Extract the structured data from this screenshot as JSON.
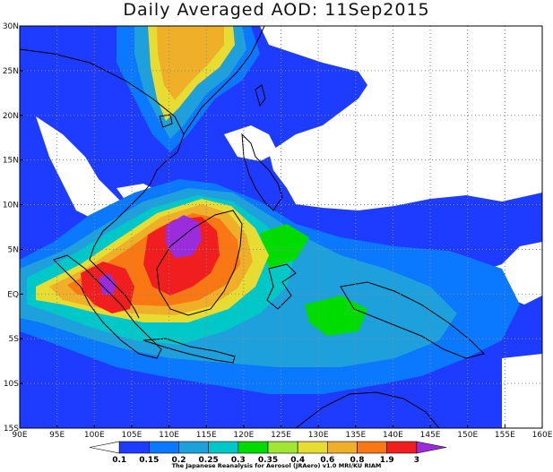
{
  "title": "Daily Averaged AOD: 11Sep2015",
  "x_ticks": [
    "90E",
    "95E",
    "100E",
    "105E",
    "110E",
    "115E",
    "120E",
    "125E",
    "130E",
    "135E",
    "140E",
    "145E",
    "150E",
    "155E",
    "160E"
  ],
  "y_ticks": [
    "30N",
    "25N",
    "20N",
    "15N",
    "10N",
    "5N",
    "EQ",
    "5S",
    "10S",
    "15S"
  ],
  "colorbar": {
    "labels": [
      "0.1",
      "0.15",
      "0.2",
      "0.25",
      "0.3",
      "0.35",
      "0.4",
      "0.6",
      "0.8",
      "1.9",
      "3"
    ],
    "colors": [
      "#ffffff",
      "#1e3cff",
      "#0a78ff",
      "#1ea0dc",
      "#00c8c8",
      "#00dc00",
      "#a0e632",
      "#e6dc32",
      "#f0af28",
      "#fa7814",
      "#f01e1e",
      "#9b2cdc"
    ]
  },
  "credit": "The Japanese Reanalysis for Aerosol (JRAero) v1.0 MRI/KU RIAM"
}
